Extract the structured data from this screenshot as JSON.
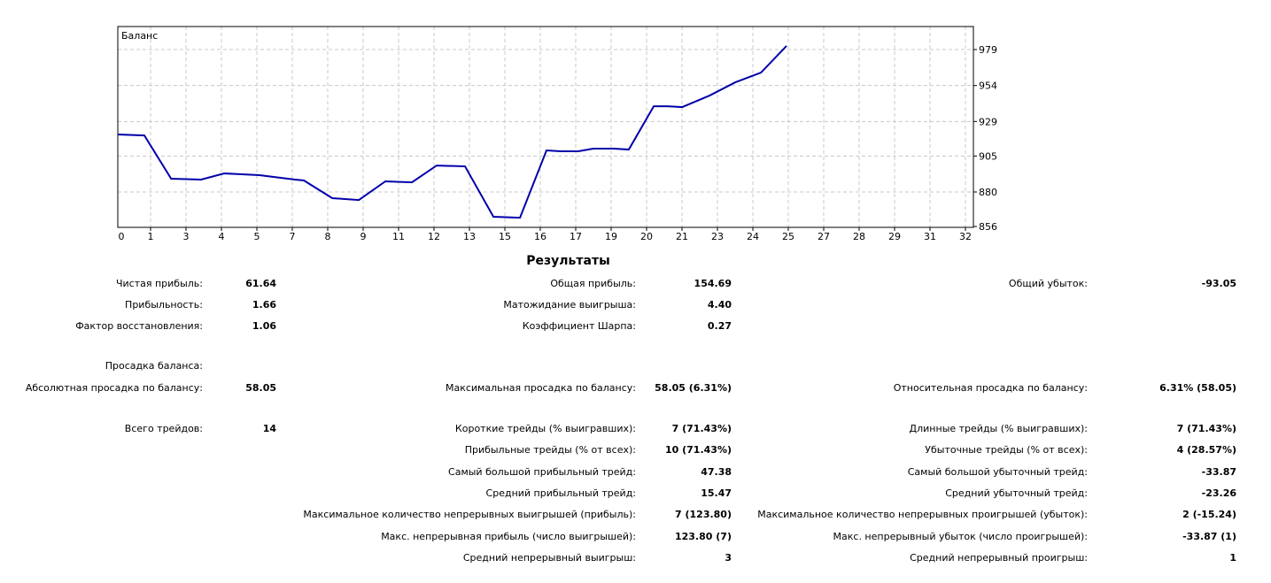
{
  "chart_data": {
    "type": "line",
    "title": "Баланс",
    "xlabel": "",
    "ylabel": "",
    "xlim": [
      -0.25,
      32.3
    ],
    "ylim": [
      855.4,
      995
    ],
    "grid": true,
    "x_tick_labels": [
      "0",
      "1",
      "3",
      "4",
      "5",
      "7",
      "8",
      "9",
      "11",
      "12",
      "13",
      "15",
      "16",
      "17",
      "19",
      "20",
      "21",
      "23",
      "24",
      "25",
      "27",
      "28",
      "29",
      "31",
      "32"
    ],
    "y_ticks": [
      979,
      954,
      929,
      905,
      880,
      856
    ],
    "line_color": "#0000aa",
    "series": [
      {
        "name": "Баланс",
        "x": [
          -0.25,
          0.76,
          1.78,
          2.92,
          3.8,
          4.47,
          5.14,
          6.49,
          6.83,
          7.91,
          8.92,
          9.93,
          10.94,
          11.88,
          12.96,
          14.04,
          15.05,
          16.06,
          16.6,
          17.27,
          17.84,
          18.62,
          19.19,
          20.14,
          20.64,
          21.22,
          22.26,
          23.24,
          24.22,
          25.19
        ],
        "values": [
          920,
          919.3,
          889.2,
          888.6,
          892.9,
          892.3,
          891.7,
          888.6,
          888,
          875.7,
          874.4,
          887.4,
          886.7,
          898.4,
          897.8,
          862.8,
          862.1,
          908.9,
          908.3,
          908.3,
          910.1,
          910.1,
          909.5,
          939.6,
          939.6,
          939,
          947,
          956.2,
          963,
          981.5
        ]
      }
    ]
  },
  "results": {
    "title": "Результаты",
    "rows": [
      [
        {
          "label": "Чистая прибыль:",
          "value": "61.64"
        },
        {
          "label": "Общая прибыль:",
          "value": "154.69"
        },
        {
          "label": "Общий убыток:",
          "value": "-93.05"
        }
      ],
      [
        {
          "label": "Прибыльность:",
          "value": "1.66"
        },
        {
          "label": "Матожидание выигрыша:",
          "value": "4.40"
        },
        null
      ],
      [
        {
          "label": "Фактор восстановления:",
          "value": "1.06"
        },
        {
          "label": "Коэффициент Шарпа:",
          "value": "0.27"
        },
        null
      ],
      [
        {
          "label": "Просадка баланса:",
          "value": ""
        },
        null,
        null
      ],
      [
        {
          "label": "Абсолютная просадка по балансу:",
          "value": "58.05"
        },
        {
          "label": "Максимальная просадка по балансу:",
          "value": "58.05 (6.31%)"
        },
        {
          "label": "Относительная просадка по балансу:",
          "value": "6.31% (58.05)"
        }
      ],
      [
        {
          "label": "Всего трейдов:",
          "value": "14"
        },
        {
          "label": "Короткие трейды (% выигравших):",
          "value": "7 (71.43%)"
        },
        {
          "label": "Длинные трейды (% выигравших):",
          "value": "7 (71.43%)"
        }
      ],
      [
        null,
        {
          "label": "Прибыльные трейды (% от всех):",
          "value": "10 (71.43%)"
        },
        {
          "label": "Убыточные трейды (% от всех):",
          "value": "4 (28.57%)"
        }
      ],
      [
        null,
        {
          "label": "Самый большой прибыльный трейд:",
          "value": "47.38"
        },
        {
          "label": "Самый большой убыточный трейд:",
          "value": "-33.87"
        }
      ],
      [
        null,
        {
          "label": "Средний прибыльный трейд:",
          "value": "15.47"
        },
        {
          "label": "Средний убыточный трейд:",
          "value": "-23.26"
        }
      ],
      [
        null,
        {
          "label": "Максимальное количество непрерывных выигрышей (прибыль):",
          "value": "7 (123.80)"
        },
        {
          "label": "Максимальное количество непрерывных проигрышей (убыток):",
          "value": "2 (-15.24)"
        }
      ],
      [
        null,
        {
          "label": "Макс. непрерывная прибыль (число выигрышей):",
          "value": "123.80 (7)"
        },
        {
          "label": "Макс. непрерывный убыток (число проигрышей):",
          "value": "-33.87 (1)"
        }
      ],
      [
        null,
        {
          "label": "Средний непрерывный выигрыш:",
          "value": "3"
        },
        {
          "label": "Средний непрерывный проигрыш:",
          "value": "1"
        }
      ]
    ]
  }
}
